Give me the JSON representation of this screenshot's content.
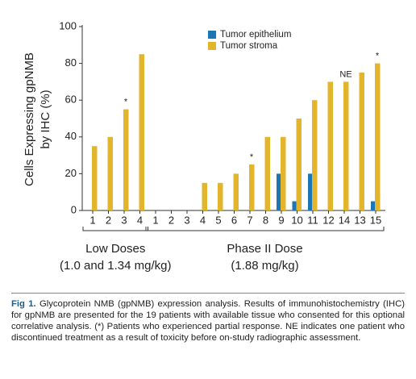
{
  "chart_data": {
    "type": "bar",
    "y_label": [
      "Cells Expressing gpNMB",
      "by IHC (%)"
    ],
    "categories": [
      "1",
      "2",
      "3",
      "4",
      "1",
      "2",
      "3",
      "4",
      "5",
      "6",
      "7",
      "8",
      "9",
      "10",
      "11",
      "12",
      "14",
      "13",
      "15"
    ],
    "series": [
      {
        "name": "Tumor epithelium",
        "color": "#1b76b6",
        "values": [
          0,
          0,
          0,
          0,
          0,
          0,
          0,
          0,
          0,
          0,
          0,
          0,
          20,
          5,
          20,
          0,
          0,
          0,
          5
        ]
      },
      {
        "name": "Tumor stroma",
        "color": "#e2b52c",
        "values": [
          35,
          40,
          55,
          85,
          0,
          0,
          0,
          15,
          15,
          20,
          25,
          40,
          40,
          50,
          60,
          70,
          70,
          75,
          80
        ]
      }
    ],
    "annotations": [
      null,
      null,
      "*",
      null,
      null,
      null,
      null,
      null,
      null,
      null,
      "*",
      null,
      null,
      null,
      null,
      null,
      "NE",
      null,
      "*"
    ],
    "groups": [
      {
        "label": "Low Doses",
        "sublabel": "(1.0 and 1.34 mg/kg)"
      },
      {
        "label": "Phase II Dose",
        "sublabel": "(1.88 mg/kg)"
      }
    ],
    "ylim": [
      0,
      100
    ],
    "yticks": [
      0,
      20,
      40,
      60,
      80,
      100
    ]
  },
  "caption": {
    "label": "Fig 1.",
    "text": "Glycoprotein NMB (gpNMB) expression analysis. Results of immuno­histochemistry (IHC) for gpNMB are presented for the 19 patients with available tissue who consented for this optional correlative analysis. (*) Patients who experienced partial response. NE indicates one patient who discontinued treatment as a result of toxicity before on-study radiographic assessment."
  }
}
